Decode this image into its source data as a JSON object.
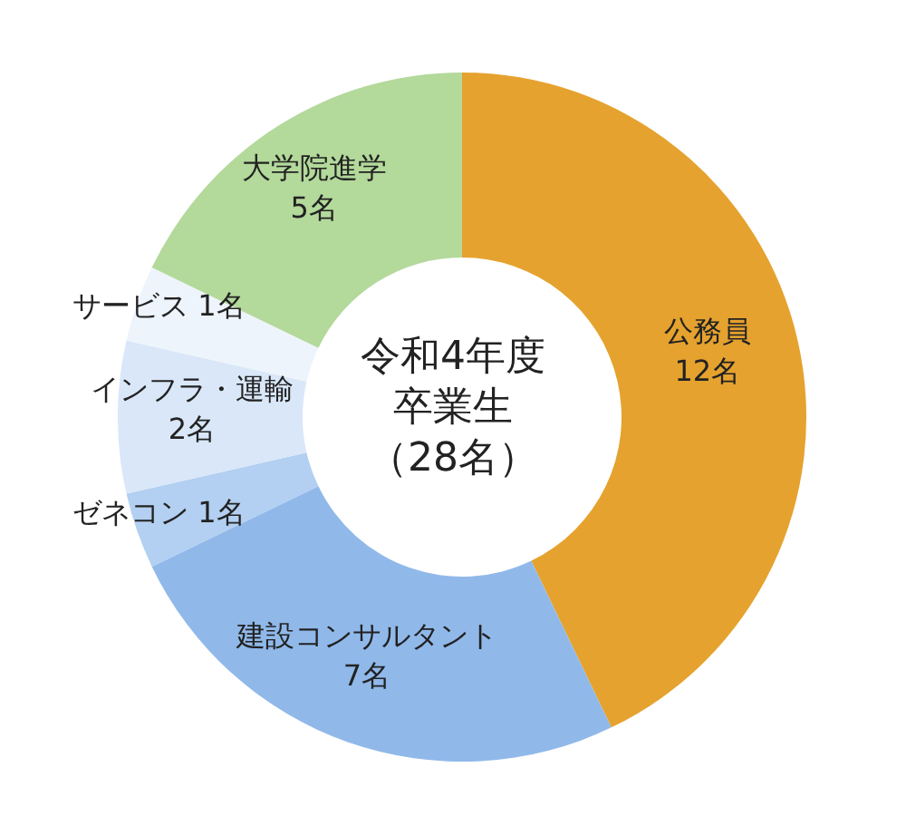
{
  "chart_data": {
    "type": "donut",
    "title": "令和4年度卒業生",
    "subtitle": "（28名）",
    "categories": [
      "公務員",
      "建設コンサルタント",
      "ゼネコン",
      "インフラ・運輸",
      "サービス",
      "大学院進学"
    ],
    "values": [
      12,
      7,
      1,
      2,
      1,
      5
    ],
    "value_labels": [
      "12名",
      "7名",
      "1名",
      "2名",
      "1名",
      "5名"
    ],
    "colors": [
      "#e5a22e",
      "#90b9ea",
      "#b3cff1",
      "#d9e7f8",
      "#eef4fb",
      "#b3d99b"
    ]
  }
}
